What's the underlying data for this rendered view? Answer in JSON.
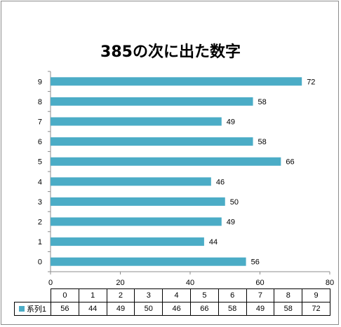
{
  "chart_data": {
    "type": "bar",
    "orientation": "horizontal",
    "title": "385の次に出た数字",
    "categories": [
      "0",
      "1",
      "2",
      "3",
      "4",
      "5",
      "6",
      "7",
      "8",
      "9"
    ],
    "series": [
      {
        "name": "系列1",
        "values": [
          56,
          44,
          49,
          50,
          46,
          66,
          58,
          49,
          58,
          72
        ]
      }
    ],
    "xlim": [
      0,
      80
    ],
    "x_ticks": [
      0,
      20,
      40,
      60,
      80
    ],
    "grid": false,
    "data_labels": true,
    "legend": "data-table",
    "bar_color": "#4bacc6"
  }
}
